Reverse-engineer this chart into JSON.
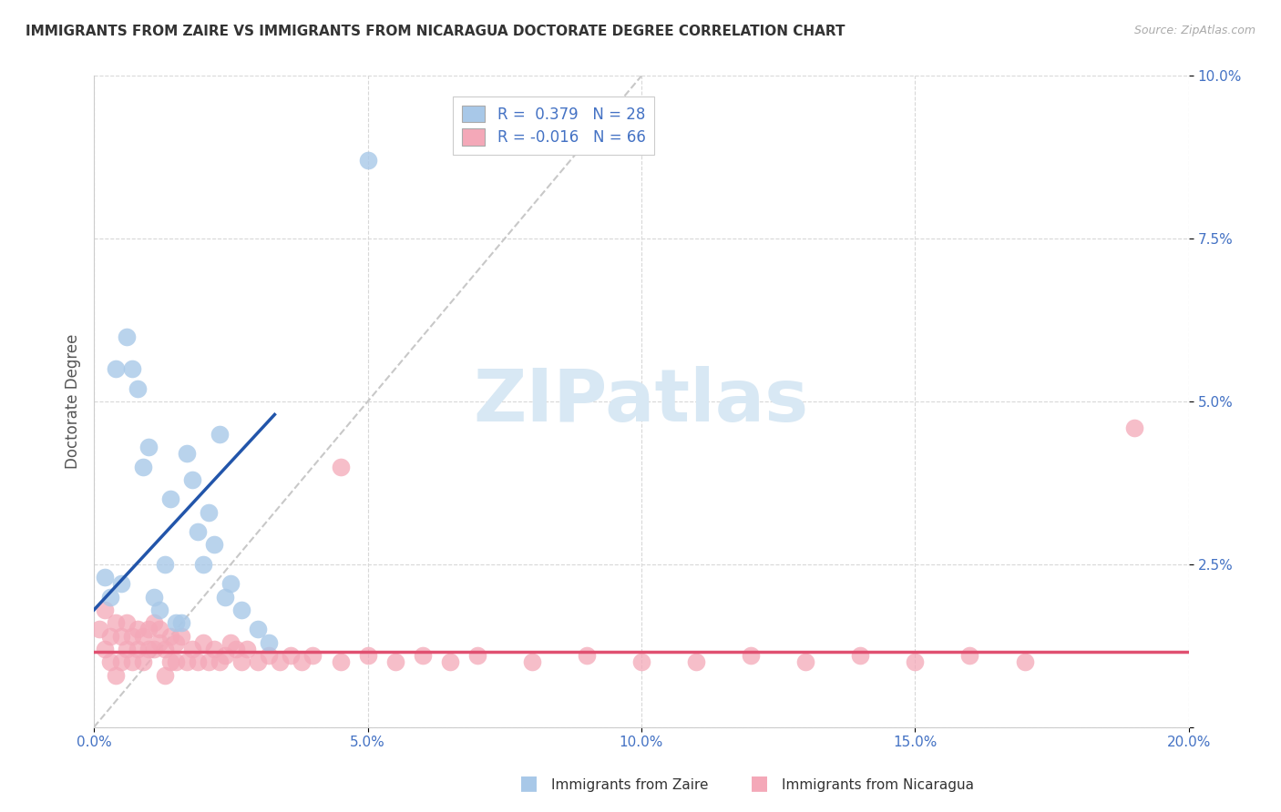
{
  "title": "IMMIGRANTS FROM ZAIRE VS IMMIGRANTS FROM NICARAGUA DOCTORATE DEGREE CORRELATION CHART",
  "source": "Source: ZipAtlas.com",
  "ylabel_label": "Doctorate Degree",
  "xlim": [
    0.0,
    0.2
  ],
  "ylim": [
    0.0,
    0.1
  ],
  "xticks": [
    0.0,
    0.05,
    0.1,
    0.15,
    0.2
  ],
  "xtick_labels": [
    "0.0%",
    "5.0%",
    "10.0%",
    "15.0%",
    "20.0%"
  ],
  "yticks": [
    0.0,
    0.025,
    0.05,
    0.075,
    0.1
  ],
  "ytick_labels": [
    "",
    "2.5%",
    "5.0%",
    "7.5%",
    "10.0%"
  ],
  "zaire_R": 0.379,
  "zaire_N": 28,
  "nicaragua_R": -0.016,
  "nicaragua_N": 66,
  "zaire_color": "#a8c8e8",
  "nicaragua_color": "#f4a8b8",
  "zaire_line_color": "#2255aa",
  "nicaragua_line_color": "#e05070",
  "ref_line_color": "#c8c8c8",
  "background_color": "#ffffff",
  "grid_color": "#d8d8d8",
  "legend_text_color": "#4472c4",
  "watermark_color": "#d8e8f4",
  "zaire_x": [
    0.002,
    0.003,
    0.004,
    0.005,
    0.006,
    0.007,
    0.008,
    0.009,
    0.01,
    0.011,
    0.012,
    0.013,
    0.014,
    0.015,
    0.016,
    0.017,
    0.018,
    0.019,
    0.02,
    0.021,
    0.022,
    0.023,
    0.024,
    0.025,
    0.027,
    0.03,
    0.032,
    0.05
  ],
  "zaire_y": [
    0.023,
    0.02,
    0.055,
    0.022,
    0.06,
    0.055,
    0.052,
    0.04,
    0.043,
    0.02,
    0.018,
    0.025,
    0.035,
    0.016,
    0.016,
    0.042,
    0.038,
    0.03,
    0.025,
    0.033,
    0.028,
    0.045,
    0.02,
    0.022,
    0.018,
    0.015,
    0.013,
    0.087
  ],
  "nicaragua_x": [
    0.001,
    0.002,
    0.002,
    0.003,
    0.003,
    0.004,
    0.004,
    0.005,
    0.005,
    0.006,
    0.006,
    0.007,
    0.007,
    0.008,
    0.008,
    0.009,
    0.009,
    0.01,
    0.01,
    0.011,
    0.011,
    0.012,
    0.012,
    0.013,
    0.013,
    0.014,
    0.014,
    0.015,
    0.015,
    0.016,
    0.017,
    0.018,
    0.019,
    0.02,
    0.021,
    0.022,
    0.023,
    0.024,
    0.025,
    0.026,
    0.027,
    0.028,
    0.03,
    0.032,
    0.034,
    0.036,
    0.038,
    0.04,
    0.045,
    0.05,
    0.055,
    0.06,
    0.065,
    0.07,
    0.08,
    0.09,
    0.1,
    0.11,
    0.12,
    0.13,
    0.14,
    0.15,
    0.16,
    0.17,
    0.19,
    0.045
  ],
  "nicaragua_y": [
    0.015,
    0.012,
    0.018,
    0.014,
    0.01,
    0.016,
    0.008,
    0.014,
    0.01,
    0.016,
    0.012,
    0.014,
    0.01,
    0.015,
    0.012,
    0.014,
    0.01,
    0.015,
    0.012,
    0.016,
    0.012,
    0.013,
    0.015,
    0.012,
    0.008,
    0.014,
    0.01,
    0.013,
    0.01,
    0.014,
    0.01,
    0.012,
    0.01,
    0.013,
    0.01,
    0.012,
    0.01,
    0.011,
    0.013,
    0.012,
    0.01,
    0.012,
    0.01,
    0.011,
    0.01,
    0.011,
    0.01,
    0.011,
    0.01,
    0.011,
    0.01,
    0.011,
    0.01,
    0.011,
    0.01,
    0.011,
    0.01,
    0.01,
    0.011,
    0.01,
    0.011,
    0.01,
    0.011,
    0.01,
    0.046,
    0.04
  ],
  "zaire_line_x0": 0.0,
  "zaire_line_y0": 0.018,
  "zaire_line_x1": 0.033,
  "zaire_line_y1": 0.048,
  "nicaragua_line_y": 0.0115,
  "figsize": [
    14.06,
    8.92
  ],
  "dpi": 100
}
